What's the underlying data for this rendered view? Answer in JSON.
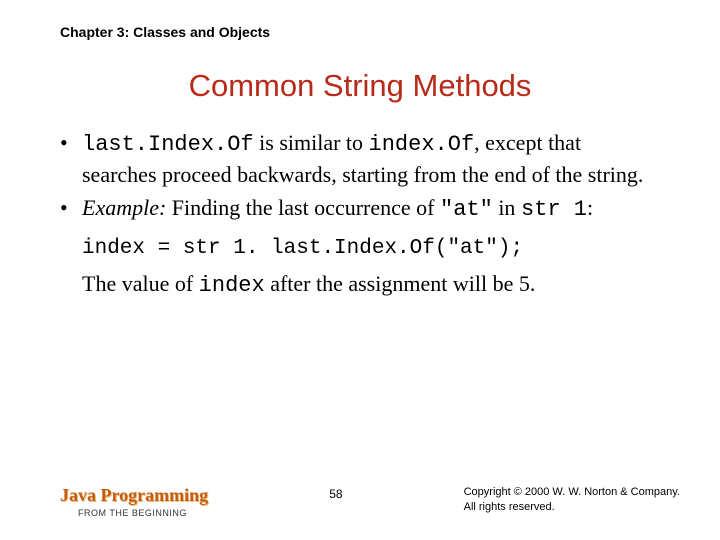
{
  "chapter": "Chapter 3: Classes and Objects",
  "title": "Common String Methods",
  "bullet1": {
    "code1": "last.Index.Of",
    "t1": " is similar to ",
    "code2": "index.Of",
    "t2": ", except that searches proceed backwards, starting from the end of the string."
  },
  "bullet2": {
    "em": "Example:",
    "t1": " Finding the last occurrence of ",
    "code1": "\"at\"",
    "t2": " in ",
    "code2": "str 1",
    "t3": ":"
  },
  "codeline": "index = str 1. last.Index.Of(\"at\");",
  "after": {
    "t1": "The value of ",
    "code": "index",
    "t2": " after the assignment will be 5."
  },
  "footer": {
    "brand_main": "Java Programming",
    "brand_sub": "FROM THE BEGINNING",
    "page": "58",
    "copy1": "Copyright © 2000 W. W. Norton & Company.",
    "copy2": "All rights reserved."
  },
  "colors": {
    "title_color": "#b92a1a",
    "brand_color": "#c75b12",
    "text_color": "#000000",
    "background": "#ffffff"
  },
  "fontsizes": {
    "chapter": 14,
    "title": 31,
    "body": 22,
    "code": 21,
    "brand_main": 18,
    "brand_sub": 9,
    "page": 12,
    "copyright": 11
  }
}
